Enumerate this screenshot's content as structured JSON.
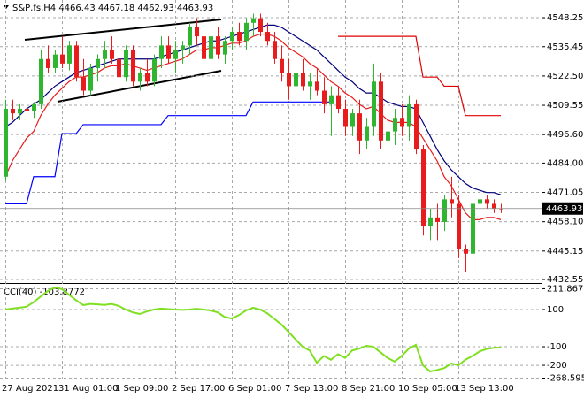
{
  "chart_data": [
    {
      "type": "candlestick",
      "title": "S&P,fs,H4  4466.43 4467.18 4462.93 4463.93",
      "categories": [
        "27 Aug 2021",
        null,
        null,
        null,
        null,
        null,
        null,
        null,
        "31 Aug 01:00",
        null,
        null,
        null,
        null,
        null,
        null,
        null,
        "1 Sep 09:00",
        null,
        null,
        null,
        null,
        null,
        null,
        null,
        "2 Sep 17:00",
        null,
        null,
        null,
        null,
        null,
        null,
        null,
        "6 Sep 01:00",
        null,
        null,
        null,
        null,
        null,
        null,
        null,
        "7 Sep 13:00",
        null,
        null,
        null,
        null,
        null,
        null,
        null,
        "8 Sep 21:00",
        null,
        null,
        null,
        null,
        null,
        null,
        null,
        "10 Sep 05:00",
        null,
        null,
        null,
        null,
        null,
        null,
        null,
        "13 Sep 13:00",
        null,
        null,
        null,
        null,
        null,
        null
      ],
      "open": [
        4478,
        4508,
        4506,
        4508,
        4507,
        4510,
        4530,
        4526,
        4532,
        4528,
        4536,
        4522,
        4516,
        4526,
        4530,
        4534,
        4530,
        4522,
        4534,
        4520,
        4524,
        4520,
        4530,
        4536,
        4530,
        4534,
        4536,
        4544,
        4540,
        4530,
        4540,
        4532,
        4538,
        4542,
        4538,
        4546,
        4548,
        4542,
        4538,
        4530,
        4524,
        4518,
        4524,
        4518,
        4520,
        4516,
        4510,
        4514,
        4508,
        4500,
        4506,
        4494,
        4500,
        4520,
        4494,
        4498,
        4504,
        4500,
        4510,
        4490,
        4456,
        4460,
        4458,
        4468,
        4466,
        4446,
        4444,
        4466,
        4468,
        4466,
        4464
      ],
      "high": [
        4512,
        4512,
        4510,
        4512,
        4511,
        4534,
        4536,
        4534,
        4540,
        4538,
        4538,
        4530,
        4528,
        4532,
        4538,
        4540,
        4536,
        4536,
        4536,
        4526,
        4530,
        4532,
        4540,
        4540,
        4538,
        4538,
        4546,
        4548,
        4546,
        4542,
        4544,
        4540,
        4544,
        4546,
        4548,
        4550,
        4550,
        4546,
        4542,
        4536,
        4530,
        4528,
        4530,
        4524,
        4526,
        4522,
        4518,
        4518,
        4512,
        4508,
        4512,
        4504,
        4528,
        4524,
        4500,
        4508,
        4510,
        4514,
        4512,
        4492,
        4464,
        4466,
        4470,
        4478,
        4470,
        4448,
        4468,
        4470,
        4470,
        4468,
        4466
      ],
      "low": [
        4476,
        4503,
        4503,
        4505,
        4504,
        4508,
        4524,
        4524,
        4526,
        4525,
        4520,
        4514,
        4514,
        4520,
        4526,
        4528,
        4520,
        4520,
        4518,
        4516,
        4518,
        4518,
        4526,
        4528,
        4524,
        4528,
        4532,
        4536,
        4528,
        4526,
        4530,
        4528,
        4534,
        4536,
        4534,
        4540,
        4540,
        4536,
        4528,
        4520,
        4512,
        4514,
        4516,
        4512,
        4514,
        4506,
        4496,
        4506,
        4496,
        4496,
        4488,
        4490,
        4496,
        4490,
        4488,
        4492,
        4496,
        4494,
        4488,
        4452,
        4450,
        4450,
        4454,
        4460,
        4442,
        4436,
        4440,
        4462,
        4464,
        4462,
        4462
      ],
      "close": [
        4508,
        4506,
        4508,
        4507,
        4510,
        4530,
        4526,
        4532,
        4528,
        4536,
        4522,
        4516,
        4526,
        4530,
        4534,
        4530,
        4522,
        4534,
        4520,
        4524,
        4520,
        4530,
        4536,
        4530,
        4534,
        4536,
        4544,
        4540,
        4530,
        4540,
        4532,
        4538,
        4542,
        4538,
        4546,
        4548,
        4542,
        4538,
        4530,
        4524,
        4518,
        4524,
        4518,
        4520,
        4516,
        4510,
        4514,
        4508,
        4500,
        4506,
        4494,
        4500,
        4520,
        4494,
        4498,
        4504,
        4500,
        4510,
        4490,
        4456,
        4460,
        4458,
        4468,
        4466,
        4446,
        4444,
        4466,
        4468,
        4466,
        4464,
        4463.93
      ],
      "up_color": "#2fb52f",
      "down_color": "#e81c1c",
      "series": [
        {
          "color": "#e81c1c",
          "values": [
            4478,
            4485,
            4490,
            4495,
            4498,
            4505,
            4510,
            4514,
            4517,
            4520,
            4522,
            4522,
            4523,
            4524,
            4526,
            4527,
            4527,
            4528,
            4527,
            4526,
            4525,
            4526,
            4527,
            4528,
            4529,
            4530,
            4532,
            4534,
            4534,
            4535,
            4535,
            4536,
            4537,
            4537,
            4538,
            4540,
            4541,
            4541,
            4540,
            4538,
            4535,
            4533,
            4531,
            4528,
            4526,
            4523,
            4520,
            4518,
            4515,
            4513,
            4510,
            4508,
            4509,
            4506,
            4503,
            4502,
            4502,
            4502,
            4500,
            4495,
            4490,
            4485,
            4478,
            4474,
            4468,
            4462,
            4459,
            4459,
            4460,
            4460,
            4459
          ]
        },
        {
          "color": "#00007f",
          "values": [
            4500,
            4502,
            4505,
            4508,
            4510,
            4512,
            4515,
            4518,
            4520,
            4522,
            4524,
            4525,
            4526,
            4527,
            4528,
            4529,
            4530,
            4530,
            4530,
            4530,
            4530,
            4530,
            4531,
            4532,
            4533,
            4534,
            4535,
            4536,
            4537,
            4538,
            4538,
            4539,
            4540,
            4541,
            4542,
            4543,
            4544,
            4545,
            4545,
            4544,
            4542,
            4540,
            4538,
            4536,
            4534,
            4531,
            4528,
            4525,
            4522,
            4520,
            4517,
            4515,
            4515,
            4513,
            4511,
            4510,
            4509,
            4509,
            4508,
            4502,
            4496,
            4490,
            4485,
            4481,
            4478,
            4475,
            4473,
            4472,
            4471,
            4471,
            4470
          ]
        },
        {
          "color": "#0000ff",
          "values": [
            4466,
            4466,
            4466,
            4466,
            4478,
            4478,
            4478,
            4478,
            4497,
            4497,
            4497,
            4501,
            4501,
            4501,
            4501,
            4501,
            4501,
            4501,
            4501,
            4501,
            4501,
            4501,
            4501,
            4505,
            4505,
            4505,
            4505,
            4505,
            4505,
            4505,
            4505,
            4505,
            4505,
            4505,
            4505,
            4511,
            4511,
            4511,
            4511,
            4511,
            4511,
            4511,
            4511,
            4511,
            4511,
            4511,
            4511,
            null,
            null,
            null,
            null,
            null,
            null,
            null,
            null,
            null,
            null,
            null,
            null,
            null,
            null,
            null,
            null,
            null,
            null,
            null,
            null,
            null,
            null,
            null,
            null
          ]
        },
        {
          "color": "#e00000",
          "values": [
            null,
            null,
            null,
            null,
            null,
            null,
            null,
            null,
            null,
            null,
            null,
            null,
            null,
            null,
            null,
            null,
            null,
            null,
            null,
            null,
            null,
            null,
            null,
            null,
            null,
            null,
            null,
            null,
            null,
            null,
            null,
            null,
            null,
            null,
            null,
            null,
            null,
            null,
            null,
            null,
            null,
            null,
            null,
            null,
            null,
            null,
            null,
            4540,
            4540,
            4540,
            4540,
            4540,
            4540,
            4540,
            4540,
            4540,
            4540,
            4540,
            4540,
            4522,
            4522,
            4522,
            4518,
            4518,
            4518,
            4505,
            4505,
            4505,
            4505,
            4505,
            4505
          ]
        }
      ],
      "ylim": [
        4431,
        4555.3
      ],
      "yticks": [
        4548.25,
        4535.45,
        {
          "value": 4522.5,
          "label": "4522.50"
        },
        4509.55,
        {
          "value": 4496.6,
          "label": "4496.60"
        },
        {
          "value": 4484,
          "label": "4484.00"
        },
        4471.05,
        {
          "value": 4458.1,
          "label": "4458.10"
        },
        4445.15,
        4432.55
      ],
      "grid": true
    },
    {
      "type": "line",
      "title": "CCI(40) -103.8772",
      "color": "#7fe020",
      "values": [
        100,
        105,
        110,
        115,
        140,
        170,
        200,
        219,
        210,
        180,
        150,
        124,
        130,
        128,
        125,
        130,
        120,
        100,
        85,
        76,
        90,
        100,
        105,
        102,
        100,
        98,
        100,
        104,
        100,
        95,
        85,
        60,
        52,
        70,
        95,
        110,
        100,
        80,
        50,
        20,
        -20,
        -60,
        -100,
        -120,
        -186,
        -150,
        -170,
        -140,
        -160,
        -120,
        -110,
        -95,
        -100,
        -130,
        -160,
        -180,
        -150,
        -110,
        -90,
        -200,
        -233,
        -225,
        -215,
        -190,
        -200,
        -170,
        -150,
        -125,
        -112,
        -106,
        -103.8772
      ],
      "ylim": [
        -271,
        233
      ],
      "yticks": [
        211.8675,
        100,
        -100,
        -200,
        -268.5952
      ],
      "grid": true
    }
  ]
}
